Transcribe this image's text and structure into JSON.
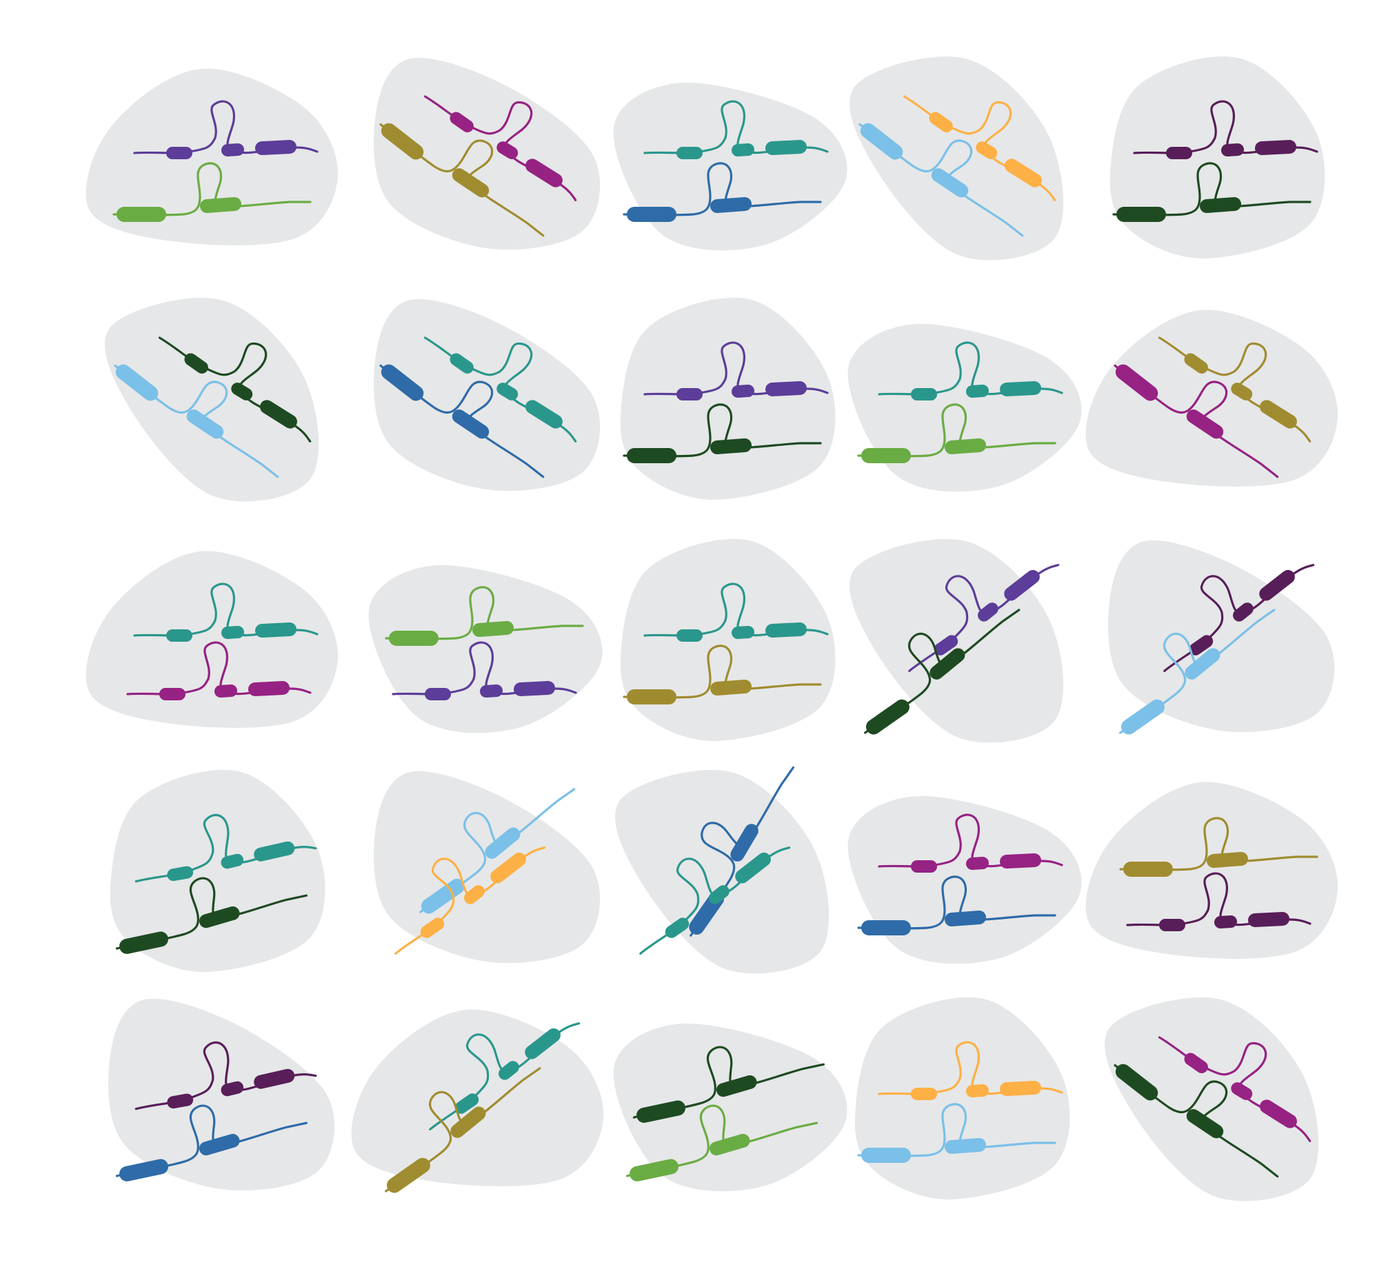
{
  "colors": {
    "background": "#ffffff",
    "blob": "#e6e7e8",
    "purple": "#5c3d99",
    "green": "#6aac44",
    "magenta": "#962283",
    "olive": "#a08c30",
    "teal": "#2a978c",
    "blue": "#2e6ba8",
    "orange": "#fdb045",
    "lightblue": "#7ac0e8",
    "darkpurple": "#581e59",
    "darkgreen": "#1e4a22"
  },
  "cells": [
    {
      "chromosomes": [
        {
          "color": "purple",
          "layout": "h-center"
        },
        {
          "color": "green",
          "layout": "h-left"
        }
      ]
    },
    {
      "chromosomes": [
        {
          "color": "magenta",
          "layout": "diag-right"
        },
        {
          "color": "olive",
          "layout": "diag-left"
        }
      ]
    },
    {
      "chromosomes": [
        {
          "color": "teal",
          "layout": "h-center"
        },
        {
          "color": "blue",
          "layout": "h-left"
        }
      ]
    },
    {
      "chromosomes": [
        {
          "color": "orange",
          "layout": "diag-right"
        },
        {
          "color": "lightblue",
          "layout": "diag-left"
        }
      ]
    },
    {
      "chromosomes": [
        {
          "color": "darkpurple",
          "layout": "h-center"
        },
        {
          "color": "darkgreen",
          "layout": "h-left"
        }
      ]
    },
    {
      "chromosomes": [
        {
          "color": "darkgreen",
          "layout": "diag-right"
        },
        {
          "color": "lightblue",
          "layout": "diag-left"
        }
      ]
    },
    {
      "chromosomes": [
        {
          "color": "teal",
          "layout": "diag-right"
        },
        {
          "color": "blue",
          "layout": "diag-left"
        }
      ]
    },
    {
      "chromosomes": [
        {
          "color": "purple",
          "layout": "h-center"
        },
        {
          "color": "darkgreen",
          "layout": "h-left"
        }
      ]
    },
    {
      "chromosomes": [
        {
          "color": "teal",
          "layout": "h-center"
        },
        {
          "color": "green",
          "layout": "h-left"
        }
      ]
    },
    {
      "chromosomes": [
        {
          "color": "olive",
          "layout": "diag-right"
        },
        {
          "color": "magenta",
          "layout": "diag-left"
        }
      ]
    },
    {
      "chromosomes": [
        {
          "color": "teal",
          "layout": "h-center"
        },
        {
          "color": "magenta",
          "layout": "h-center"
        }
      ]
    },
    {
      "chromosomes": [
        {
          "color": "green",
          "layout": "h-left"
        },
        {
          "color": "purple",
          "layout": "h-center"
        }
      ]
    },
    {
      "chromosomes": [
        {
          "color": "teal",
          "layout": "h-center"
        },
        {
          "color": "olive",
          "layout": "h-left"
        }
      ]
    },
    {
      "chromosomes": [
        {
          "color": "purple",
          "layout": "up-right"
        },
        {
          "color": "darkgreen",
          "layout": "up-right-left"
        }
      ]
    },
    {
      "chromosomes": [
        {
          "color": "darkpurple",
          "layout": "up-right"
        },
        {
          "color": "lightblue",
          "layout": "up-right-left"
        }
      ]
    },
    {
      "chromosomes": [
        {
          "color": "teal",
          "layout": "h-center-tilt"
        },
        {
          "color": "darkgreen",
          "layout": "h-left-tilt"
        }
      ]
    },
    {
      "chromosomes": [
        {
          "color": "lightblue",
          "layout": "up-right-left"
        },
        {
          "color": "orange",
          "layout": "up-right"
        }
      ]
    },
    {
      "chromosomes": [
        {
          "color": "blue",
          "layout": "down-left"
        },
        {
          "color": "teal",
          "layout": "up-right"
        }
      ]
    },
    {
      "chromosomes": [
        {
          "color": "magenta",
          "layout": "h-center"
        },
        {
          "color": "blue",
          "layout": "h-left"
        }
      ]
    },
    {
      "chromosomes": [
        {
          "color": "olive",
          "layout": "h-left"
        },
        {
          "color": "darkpurple",
          "layout": "h-center"
        }
      ]
    },
    {
      "chromosomes": [
        {
          "color": "darkpurple",
          "layout": "h-center-tilt"
        },
        {
          "color": "blue",
          "layout": "h-left-tilt"
        }
      ]
    },
    {
      "chromosomes": [
        {
          "color": "teal",
          "layout": "up-right"
        },
        {
          "color": "olive",
          "layout": "up-right-left"
        }
      ]
    },
    {
      "chromosomes": [
        {
          "color": "darkgreen",
          "layout": "h-left-tilt"
        },
        {
          "color": "green",
          "layout": "h-left-tilt"
        }
      ]
    },
    {
      "chromosomes": [
        {
          "color": "orange",
          "layout": "h-center"
        },
        {
          "color": "lightblue",
          "layout": "h-left"
        }
      ]
    },
    {
      "chromosomes": [
        {
          "color": "magenta",
          "layout": "diag-right"
        },
        {
          "color": "darkgreen",
          "layout": "diag-left"
        }
      ]
    }
  ]
}
